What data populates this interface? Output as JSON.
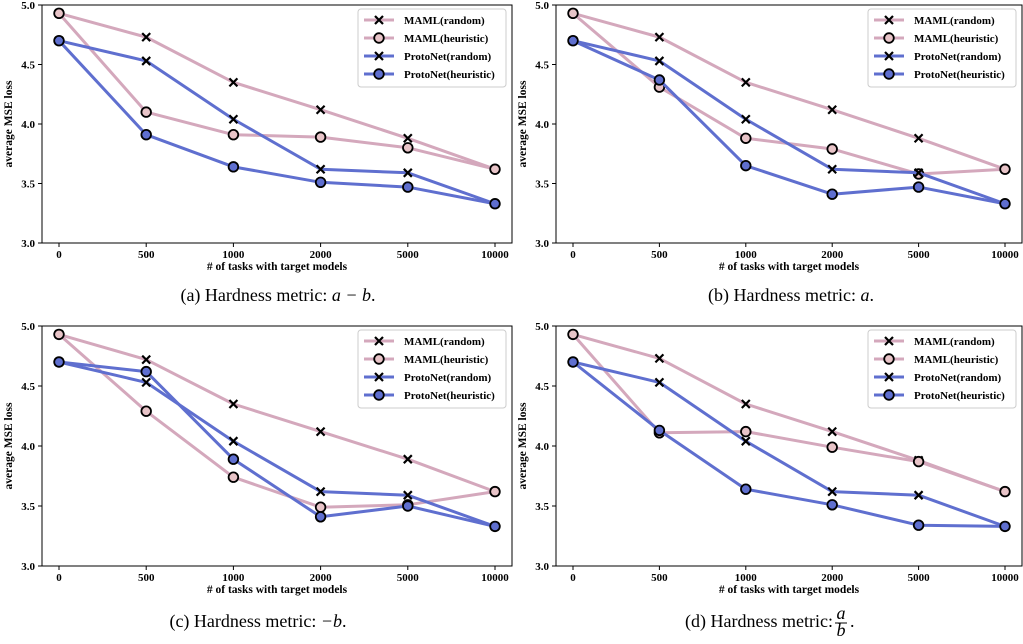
{
  "colors": {
    "maml": "#d4a8bc",
    "maml_marker_fill": "#e8c4c8",
    "protonet": "#5f6fcf",
    "protonet_marker_fill": "#5f6fcf"
  },
  "chart_data": [
    {
      "type": "line",
      "caption": {
        "prefix": "(a) Hardness metric: ",
        "math": "a − b",
        "suffix": "."
      },
      "xlabel": "# of tasks with target models",
      "ylabel": "average MSE loss",
      "categories": [
        "0",
        "500",
        "1000",
        "2000",
        "5000",
        "10000"
      ],
      "ylim": [
        3.0,
        5.0
      ],
      "yticks": [
        "3.0",
        "3.5",
        "4.0",
        "4.5",
        "5.0"
      ],
      "legend_position": "top-right",
      "series": [
        {
          "name": "MAML(random)",
          "marker": "x",
          "color": "maml",
          "values": [
            4.93,
            4.73,
            4.35,
            4.12,
            3.88,
            3.62
          ]
        },
        {
          "name": "MAML(heuristic)",
          "marker": "o",
          "color": "maml",
          "values": [
            4.93,
            4.1,
            3.91,
            3.89,
            3.8,
            3.62
          ]
        },
        {
          "name": "ProtoNet(random)",
          "marker": "x",
          "color": "protonet",
          "values": [
            4.7,
            4.53,
            4.04,
            3.62,
            3.59,
            3.33
          ]
        },
        {
          "name": "ProtoNet(heuristic)",
          "marker": "o",
          "color": "protonet",
          "values": [
            4.7,
            3.91,
            3.64,
            3.51,
            3.47,
            3.33
          ]
        }
      ]
    },
    {
      "type": "line",
      "caption": {
        "prefix": "(b) Hardness metric: ",
        "math": "a",
        "suffix": "."
      },
      "xlabel": "# of tasks with target models",
      "ylabel": "average MSE loss",
      "categories": [
        "0",
        "500",
        "1000",
        "2000",
        "5000",
        "10000"
      ],
      "ylim": [
        3.0,
        5.0
      ],
      "yticks": [
        "3.0",
        "3.5",
        "4.0",
        "4.5",
        "5.0"
      ],
      "legend_position": "top-right",
      "series": [
        {
          "name": "MAML(random)",
          "marker": "x",
          "color": "maml",
          "values": [
            4.93,
            4.73,
            4.35,
            4.12,
            3.88,
            3.62
          ]
        },
        {
          "name": "MAML(heuristic)",
          "marker": "o",
          "color": "maml",
          "values": [
            4.93,
            4.31,
            3.88,
            3.79,
            3.58,
            3.62
          ]
        },
        {
          "name": "ProtoNet(random)",
          "marker": "x",
          "color": "protonet",
          "values": [
            4.7,
            4.53,
            4.04,
            3.62,
            3.59,
            3.33
          ]
        },
        {
          "name": "ProtoNet(heuristic)",
          "marker": "o",
          "color": "protonet",
          "values": [
            4.7,
            4.37,
            3.65,
            3.41,
            3.47,
            3.33
          ]
        }
      ]
    },
    {
      "type": "line",
      "caption": {
        "prefix": "(c) Hardness metric: ",
        "math": "−b",
        "suffix": "."
      },
      "xlabel": "# of tasks with target models",
      "ylabel": "average MSE loss",
      "categories": [
        "0",
        "500",
        "1000",
        "2000",
        "5000",
        "10000"
      ],
      "ylim": [
        3.0,
        5.0
      ],
      "yticks": [
        "3.0",
        "3.5",
        "4.0",
        "4.5",
        "5.0"
      ],
      "legend_position": "top-right",
      "series": [
        {
          "name": "MAML(random)",
          "marker": "x",
          "color": "maml",
          "values": [
            4.93,
            4.72,
            4.35,
            4.12,
            3.89,
            3.62
          ]
        },
        {
          "name": "MAML(heuristic)",
          "marker": "o",
          "color": "maml",
          "values": [
            4.93,
            4.29,
            3.74,
            3.49,
            3.51,
            3.62
          ]
        },
        {
          "name": "ProtoNet(random)",
          "marker": "x",
          "color": "protonet",
          "values": [
            4.7,
            4.53,
            4.04,
            3.62,
            3.59,
            3.33
          ]
        },
        {
          "name": "ProtoNet(heuristic)",
          "marker": "o",
          "color": "protonet",
          "values": [
            4.7,
            4.62,
            3.89,
            3.41,
            3.5,
            3.33
          ]
        }
      ]
    },
    {
      "type": "line",
      "caption": {
        "prefix": "(d) Hardness metric: ",
        "math_fraction": {
          "num": "a",
          "den": "b"
        },
        "suffix": "."
      },
      "xlabel": "# of tasks with target models",
      "ylabel": "average MSE loss",
      "categories": [
        "0",
        "500",
        "1000",
        "2000",
        "5000",
        "10000"
      ],
      "ylim": [
        3.0,
        5.0
      ],
      "yticks": [
        "3.0",
        "3.5",
        "4.0",
        "4.5",
        "5.0"
      ],
      "legend_position": "top-right",
      "series": [
        {
          "name": "MAML(random)",
          "marker": "x",
          "color": "maml",
          "values": [
            4.93,
            4.73,
            4.35,
            4.12,
            3.88,
            3.62
          ]
        },
        {
          "name": "MAML(heuristic)",
          "marker": "o",
          "color": "maml",
          "values": [
            4.93,
            4.11,
            4.12,
            3.99,
            3.87,
            3.62
          ]
        },
        {
          "name": "ProtoNet(random)",
          "marker": "x",
          "color": "protonet",
          "values": [
            4.7,
            4.53,
            4.04,
            3.62,
            3.59,
            3.33
          ]
        },
        {
          "name": "ProtoNet(heuristic)",
          "marker": "o",
          "color": "protonet",
          "values": [
            4.7,
            4.13,
            3.64,
            3.51,
            3.34,
            3.33
          ]
        }
      ]
    }
  ]
}
